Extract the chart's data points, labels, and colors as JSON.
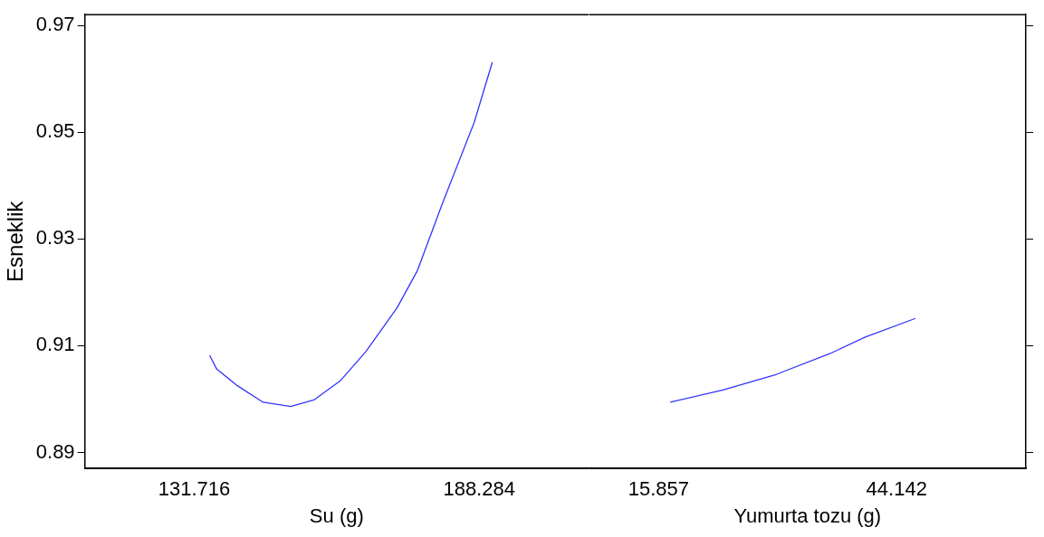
{
  "chart_data": [
    {
      "type": "line",
      "xlabel": "Su (g)",
      "ylabel": "Esneklik",
      "color": "#3333ff",
      "x": [
        134.78,
        136.2,
        140.3,
        145.4,
        150.9,
        155.6,
        160.7,
        165.8,
        172.0,
        176.0,
        181.1,
        187.3,
        190.9
      ],
      "values": [
        0.9082,
        0.9056,
        0.9025,
        0.8994,
        0.8986,
        0.8999,
        0.9034,
        0.9089,
        0.9171,
        0.924,
        0.9369,
        0.9518,
        0.9631
      ],
      "xlim": [
        110,
        210
      ],
      "xticks": [
        131.716,
        188.284
      ],
      "ylim": [
        0.887,
        0.972
      ],
      "yticks": [
        0.89,
        0.91,
        0.93,
        0.95,
        0.97
      ],
      "grid": false,
      "legend": false,
      "marker": "none"
    },
    {
      "type": "line",
      "xlabel": "Yumurta tozu (g)",
      "color": "#3333ff",
      "x": [
        17.23,
        23.5,
        29.8,
        36.2,
        40.4,
        46.37
      ],
      "values": [
        0.8994,
        0.9017,
        0.9046,
        0.9085,
        0.9116,
        0.9151
      ],
      "xlim": [
        7.6,
        59.5
      ],
      "xticks": [
        15.857,
        44.142
      ],
      "ylim": [
        0.887,
        0.972
      ],
      "yticks": [
        0.89,
        0.91,
        0.93,
        0.95,
        0.97
      ],
      "grid": false,
      "legend": false,
      "marker": "none",
      "tick_labels": "x"
    }
  ]
}
